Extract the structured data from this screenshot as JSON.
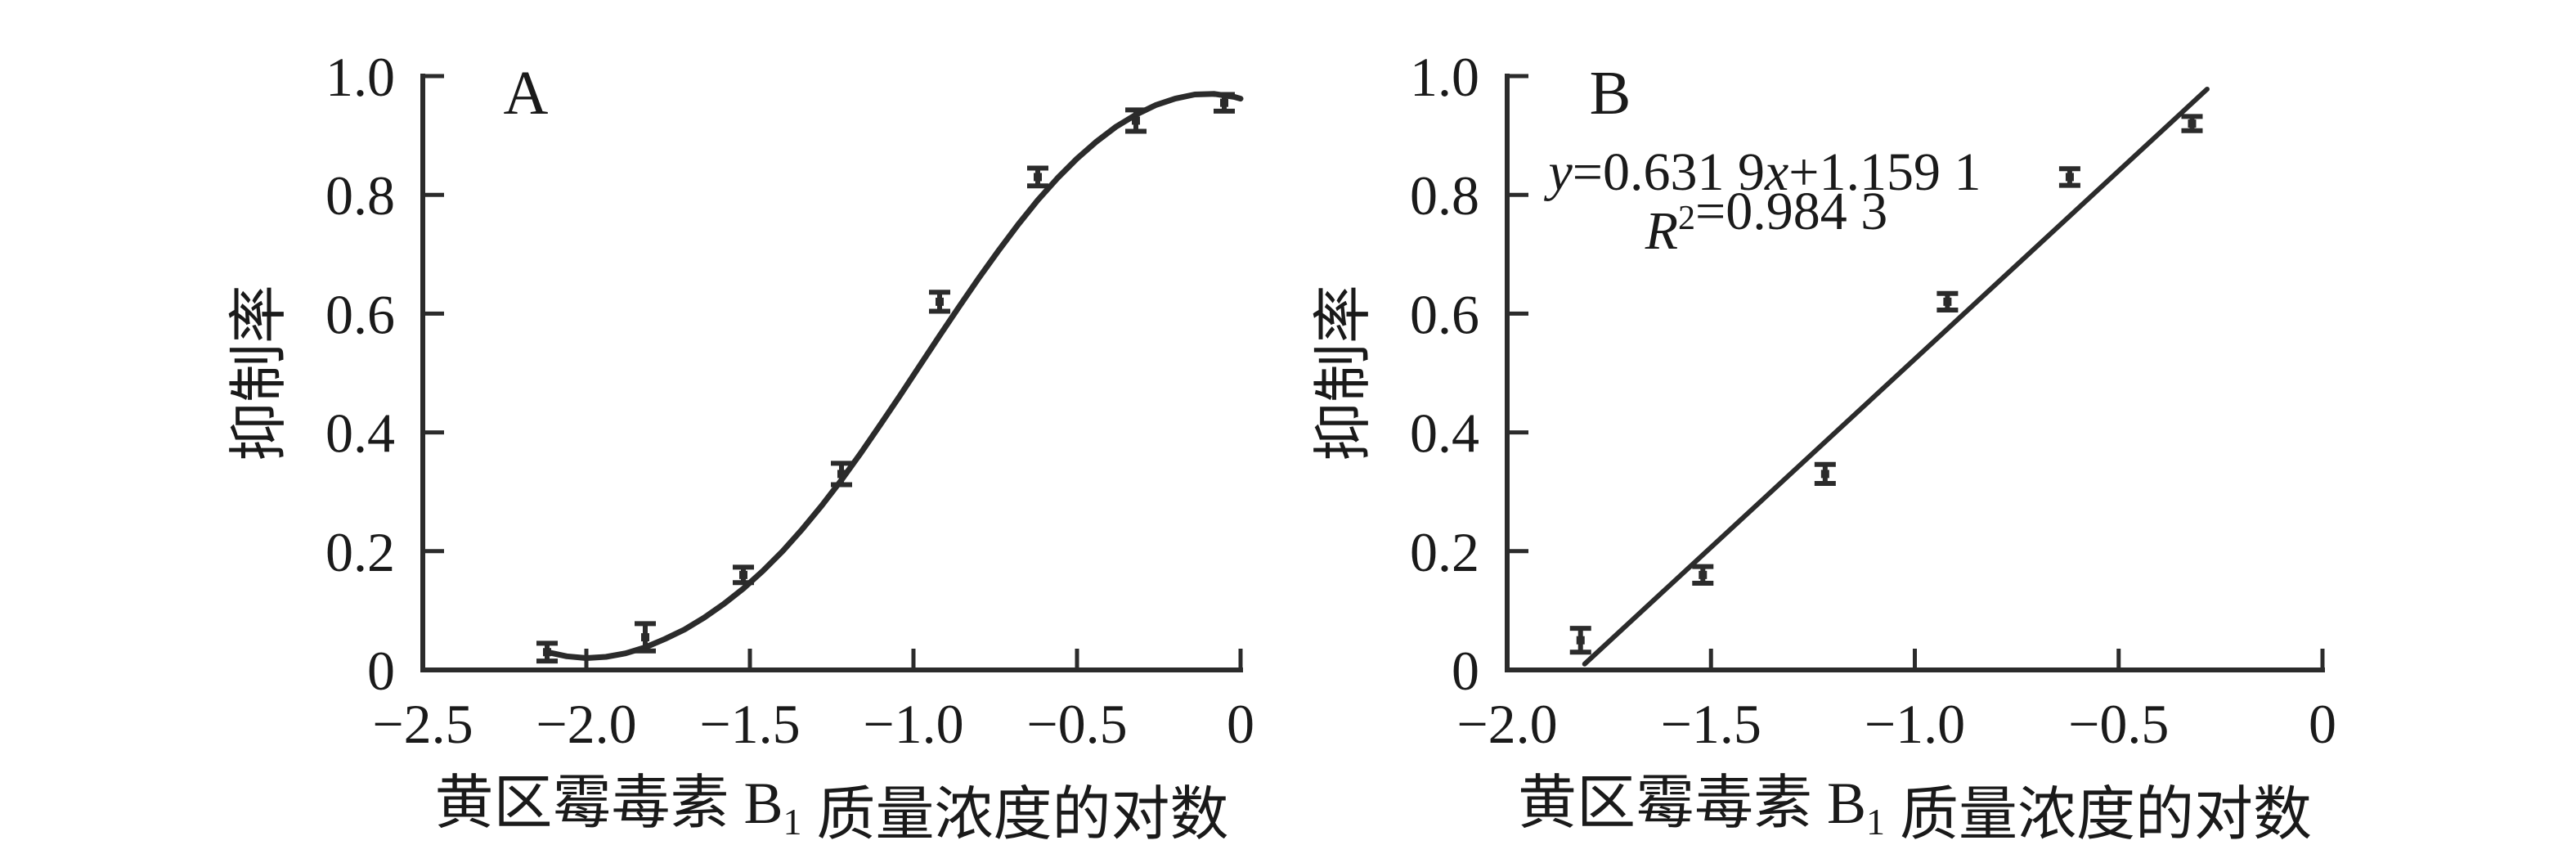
{
  "figure": {
    "background": "#ffffff",
    "ink": "#2b2b2b",
    "text_color": "#1a1a1a"
  },
  "chart_data": [
    {
      "type": "scatter",
      "panel_label": "A",
      "ylabel": "抑制率",
      "xlabel_parts": [
        {
          "t": "黄区霉毒素 B"
        },
        {
          "t": "1",
          "sub": true
        },
        {
          "t": " 质量浓度的对数"
        }
      ],
      "xlim": [
        -2.5,
        0
      ],
      "ylim": [
        0,
        1.0
      ],
      "xticks": [
        -2.5,
        -2.0,
        -1.5,
        -1.0,
        -0.5,
        0
      ],
      "xtick_labels": [
        "−2.5",
        "−2.0",
        "−1.5",
        "−1.0",
        "−0.5",
        "0"
      ],
      "yticks": [
        0,
        0.2,
        0.4,
        0.6,
        0.8,
        1.0
      ],
      "ytick_labels": [
        "0",
        "0.2",
        "0.4",
        "0.6",
        "0.8",
        "1.0"
      ],
      "grid": false,
      "points": {
        "x": [
          -2.12,
          -1.82,
          -1.52,
          -1.22,
          -0.92,
          -0.62,
          -0.32,
          -0.05
        ],
        "y": [
          0.03,
          0.055,
          0.16,
          0.33,
          0.62,
          0.83,
          0.925,
          0.955
        ],
        "err": [
          0.015,
          0.023,
          0.013,
          0.018,
          0.016,
          0.015,
          0.018,
          0.014
        ]
      },
      "fit_curve": {
        "x": [
          -2.12,
          -2.06,
          -2.0,
          -1.94,
          -1.88,
          -1.82,
          -1.76,
          -1.7,
          -1.64,
          -1.58,
          -1.52,
          -1.46,
          -1.4,
          -1.34,
          -1.28,
          -1.22,
          -1.16,
          -1.1,
          -1.04,
          -0.98,
          -0.92,
          -0.86,
          -0.8,
          -0.74,
          -0.68,
          -0.62,
          -0.56,
          -0.5,
          -0.44,
          -0.38,
          -0.32,
          -0.26,
          -0.2,
          -0.14,
          -0.08,
          -0.02,
          0.0
        ],
        "y": [
          0.03,
          0.023,
          0.02,
          0.022,
          0.028,
          0.038,
          0.052,
          0.068,
          0.088,
          0.111,
          0.137,
          0.167,
          0.2,
          0.237,
          0.277,
          0.32,
          0.366,
          0.414,
          0.463,
          0.513,
          0.563,
          0.612,
          0.66,
          0.706,
          0.75,
          0.791,
          0.828,
          0.861,
          0.89,
          0.915,
          0.935,
          0.951,
          0.962,
          0.969,
          0.97,
          0.965,
          0.962
        ]
      }
    },
    {
      "type": "scatter",
      "panel_label": "B",
      "ylabel": "抑制率",
      "xlabel_parts": [
        {
          "t": "黄区霉毒素 B"
        },
        {
          "t": "1",
          "sub": true
        },
        {
          "t": " 质量浓度的对数"
        }
      ],
      "xlim": [
        -2.0,
        0
      ],
      "ylim": [
        0,
        1.0
      ],
      "xticks": [
        -2.0,
        -1.5,
        -1.0,
        -0.5,
        0
      ],
      "xtick_labels": [
        "−2.0",
        "−1.5",
        "−1.0",
        "−0.5",
        "0"
      ],
      "yticks": [
        0,
        0.2,
        0.4,
        0.6,
        0.8,
        1.0
      ],
      "ytick_labels": [
        "0",
        "0.2",
        "0.4",
        "0.6",
        "0.8",
        "1.0"
      ],
      "grid": false,
      "points": {
        "x": [
          -1.82,
          -1.52,
          -1.22,
          -0.92,
          -0.62,
          -0.32
        ],
        "y": [
          0.05,
          0.16,
          0.33,
          0.62,
          0.83,
          0.92
        ],
        "err": [
          0.02,
          0.014,
          0.016,
          0.014,
          0.014,
          0.012
        ]
      },
      "fit_line": {
        "x1": -1.81,
        "y1": 0.01,
        "x2": -0.283,
        "y2": 0.978,
        "slope": "0.631 9",
        "intercept": "1.159 1",
        "r_squared": "0.984 3"
      },
      "annotation_lines": [
        [
          {
            "t": "y",
            "i": true
          },
          {
            "t": "=0.631 9"
          },
          {
            "t": "x",
            "i": true
          },
          {
            "t": "+1.159 1"
          }
        ],
        [
          {
            "t": "R",
            "i": true
          },
          {
            "t": "2",
            "sup": true
          },
          {
            "t": "=0.984 3"
          }
        ]
      ]
    }
  ]
}
